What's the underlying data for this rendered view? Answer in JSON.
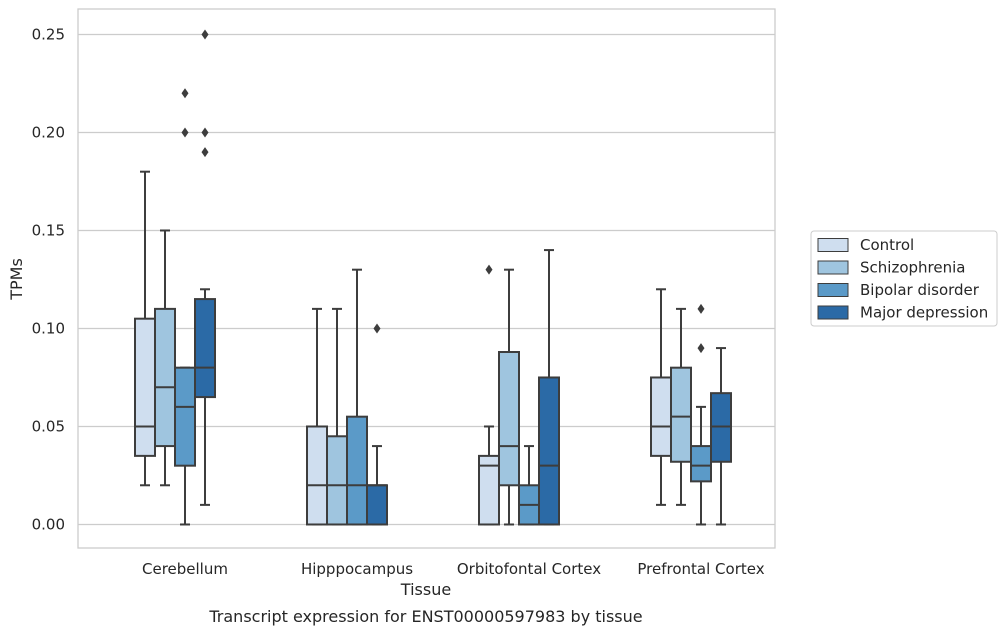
{
  "chart_data": {
    "type": "box",
    "title": "",
    "caption": "Transcript expression for ENST00000597983 by tissue",
    "xlabel": "Tissue",
    "ylabel": "TPMs",
    "ylim": [
      -0.012,
      0.263
    ],
    "yticks": [
      "0.00",
      "0.05",
      "0.10",
      "0.15",
      "0.20",
      "0.25"
    ],
    "grid": "horizontal",
    "legend_position": "right",
    "categories": [
      "Cerebellum",
      "Hipppocampus",
      "Orbitofontal Cortex",
      "Prefrontal Cortex"
    ],
    "series": [
      {
        "name": "Control",
        "color": "#cfdeef",
        "boxes": [
          {
            "whislo": 0.02,
            "q1": 0.035,
            "med": 0.05,
            "q3": 0.105,
            "whishi": 0.18,
            "fliers": []
          },
          {
            "whislo": 0.0,
            "q1": 0.0,
            "med": 0.02,
            "q3": 0.05,
            "whishi": 0.11,
            "fliers": []
          },
          {
            "whislo": 0.0,
            "q1": 0.0,
            "med": 0.03,
            "q3": 0.035,
            "whishi": 0.05,
            "fliers": [
              0.13
            ]
          },
          {
            "whislo": 0.01,
            "q1": 0.035,
            "med": 0.05,
            "q3": 0.075,
            "whishi": 0.12,
            "fliers": []
          }
        ]
      },
      {
        "name": "Schizophrenia",
        "color": "#9fc5df",
        "boxes": [
          {
            "whislo": 0.02,
            "q1": 0.04,
            "med": 0.07,
            "q3": 0.11,
            "whishi": 0.15,
            "fliers": []
          },
          {
            "whislo": 0.0,
            "q1": 0.0,
            "med": 0.02,
            "q3": 0.045,
            "whishi": 0.11,
            "fliers": []
          },
          {
            "whislo": 0.0,
            "q1": 0.02,
            "med": 0.04,
            "q3": 0.088,
            "whishi": 0.13,
            "fliers": []
          },
          {
            "whislo": 0.01,
            "q1": 0.032,
            "med": 0.055,
            "q3": 0.08,
            "whishi": 0.11,
            "fliers": []
          }
        ]
      },
      {
        "name": "Bipolar disorder",
        "color": "#5b9ac8",
        "boxes": [
          {
            "whislo": 0.0,
            "q1": 0.03,
            "med": 0.06,
            "q3": 0.08,
            "whishi": 0.08,
            "fliers": [
              0.2,
              0.22
            ]
          },
          {
            "whislo": 0.0,
            "q1": 0.0,
            "med": 0.02,
            "q3": 0.055,
            "whishi": 0.13,
            "fliers": []
          },
          {
            "whislo": 0.0,
            "q1": 0.0,
            "med": 0.01,
            "q3": 0.02,
            "whishi": 0.04,
            "fliers": []
          },
          {
            "whislo": 0.0,
            "q1": 0.022,
            "med": 0.03,
            "q3": 0.04,
            "whishi": 0.06,
            "fliers": [
              0.09,
              0.11
            ]
          }
        ]
      },
      {
        "name": "Major depression",
        "color": "#2b6aa6",
        "boxes": [
          {
            "whislo": 0.01,
            "q1": 0.065,
            "med": 0.08,
            "q3": 0.115,
            "whishi": 0.12,
            "fliers": [
              0.19,
              0.2,
              0.25
            ]
          },
          {
            "whislo": 0.0,
            "q1": 0.0,
            "med": 0.02,
            "q3": 0.02,
            "whishi": 0.04,
            "fliers": [
              0.1
            ]
          },
          {
            "whislo": 0.0,
            "q1": 0.0,
            "med": 0.03,
            "q3": 0.075,
            "whishi": 0.14,
            "fliers": []
          },
          {
            "whislo": 0.0,
            "q1": 0.032,
            "med": 0.05,
            "q3": 0.067,
            "whishi": 0.09,
            "fliers": []
          }
        ]
      }
    ]
  }
}
